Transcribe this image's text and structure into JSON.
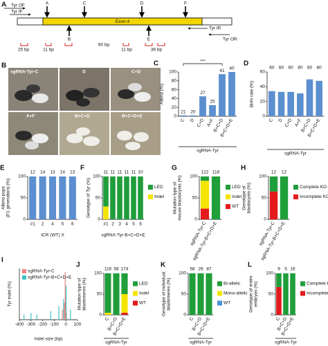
{
  "gene_diagram": {
    "panel": "A",
    "primers": [
      "Tyr OF",
      "Tyr IF",
      "Tyr IR",
      "Tyr OR"
    ],
    "exon": "Exon 4",
    "sites_top": [
      "A",
      "C",
      "D",
      "F"
    ],
    "sites_bottom": [
      "B",
      "E"
    ],
    "sizes": [
      "25 bp",
      "11 bp",
      "60 bp",
      "11 bp",
      "36 bp"
    ]
  },
  "photos": {
    "panel": "B",
    "labels": [
      "sgRNA-Tyr-C",
      "D",
      "C+D",
      "A+F",
      "B+C+D",
      "B+C+D+E"
    ]
  },
  "chart_data": [
    {
      "panel": "C",
      "type": "bar",
      "ylabel": [
        "Albino (%)"
      ],
      "xlabel": "sgRNA-Tyr",
      "categories": [
        "C",
        "D",
        "C+D",
        "A+F",
        "B+C+D",
        "B+C+D+E"
      ],
      "values": [
        2,
        2,
        45,
        25,
        95,
        100
      ],
      "n_labels": [
        "21",
        "20",
        "27",
        "25",
        "41",
        "40"
      ],
      "annotation": "***",
      "color": "#5b8fd0",
      "ylim": [
        0,
        100
      ],
      "yticks": [
        0,
        20,
        40,
        60,
        80,
        100
      ]
    },
    {
      "panel": "D",
      "type": "bar",
      "ylabel": [
        "Birth rate (%)"
      ],
      "xlabel": "sgRNA-Tyr",
      "categories": [
        "C",
        "D",
        "C+D",
        "A+F",
        "B+C+D",
        "B+C+D+E"
      ],
      "values": [
        34,
        33,
        33,
        31,
        50,
        48
      ],
      "n_labels": [
        "60",
        "60",
        "60",
        "80",
        "80",
        "80"
      ],
      "color": "#5b8fd0",
      "ylim": [
        0,
        60
      ],
      "yticks": [
        0,
        20,
        40,
        60
      ]
    },
    {
      "panel": "E",
      "type": "bar",
      "ylabel": [
        "Albino pups",
        "(F1 generation) (%)"
      ],
      "xlabel": "ICR (WT) X",
      "categories": [
        "#1",
        "2",
        "4",
        "5",
        "6"
      ],
      "values": [
        100,
        100,
        100,
        100,
        100
      ],
      "n_labels": [
        "12",
        "14",
        "13",
        "14",
        "13"
      ],
      "color": "#5b8fd0",
      "ylim": [
        0,
        100
      ],
      "yticks": [
        0,
        50,
        100
      ]
    },
    {
      "panel": "F",
      "type": "stacked",
      "ylabel": [
        "Genotype of Tyr (%)"
      ],
      "xlabel": "sgRNA-Tyr-B+C+D+E",
      "categories": [
        "#1",
        "2",
        "3",
        "4",
        "5",
        "6"
      ],
      "n_labels": [
        "11",
        "11",
        "11",
        "11",
        "11",
        "10"
      ],
      "series": [
        {
          "name": "LED",
          "color": "#1f9e3a",
          "values": [
            70,
            100,
            100,
            100,
            100,
            100
          ]
        },
        {
          "name": "Indel",
          "color": "#f5e400",
          "values": [
            30,
            0,
            0,
            0,
            0,
            0
          ]
        }
      ],
      "ylim": [
        0,
        100
      ],
      "yticks": [
        0,
        50,
        100
      ]
    },
    {
      "panel": "G",
      "type": "stacked",
      "ylabel": [
        "Mutation type of",
        "mouse blastocysts (%)"
      ],
      "categories": [
        "sgRNA-Tyr-C",
        "sgRNA-Tyr-B+C+D+E"
      ],
      "n_labels": [
        "122",
        "118"
      ],
      "series": [
        {
          "name": "LED",
          "color": "#1f9e3a",
          "values": [
            10,
            100
          ]
        },
        {
          "name": "Indel",
          "color": "#f5e400",
          "values": [
            65,
            0
          ]
        },
        {
          "name": "WT",
          "color": "#e41a1c",
          "values": [
            25,
            0
          ]
        }
      ],
      "ylim": [
        0,
        100
      ],
      "yticks": [
        0,
        50,
        100
      ]
    },
    {
      "panel": "H",
      "type": "stacked",
      "ylabel": [
        "Genotype of",
        "blastocysts (%)"
      ],
      "categories": [
        "sgRNA-Tyr-C",
        "sgRNA-Tyr-B+C+D+E"
      ],
      "n_labels": [
        "12",
        "12"
      ],
      "series": [
        {
          "name": "Complete KO",
          "color": "#1f9e3a",
          "values": [
            35,
            100
          ]
        },
        {
          "name": "Incomplete KO",
          "color": "#e41a1c",
          "values": [
            65,
            0
          ]
        }
      ],
      "ylim": [
        0,
        100
      ],
      "yticks": [
        0,
        50,
        100
      ]
    },
    {
      "panel": "I",
      "type": "spike",
      "ylabel": [
        "Tyr indel (%)"
      ],
      "xlabel": "Indel size (bp)",
      "series": [
        {
          "name": "sgRNA-Tyr-C",
          "color": "#f08080",
          "x": [
            -30,
            -12,
            -6,
            -3,
            5
          ],
          "values": [
            6,
            10,
            28,
            14,
            4
          ]
        },
        {
          "name": "sgRNA-Tyr-B+C+D+E",
          "color": "#40c0c0",
          "x": [
            -360,
            -300,
            -250,
            -130,
            -60,
            -20,
            2,
            40
          ],
          "values": [
            3,
            4,
            3,
            5,
            8,
            12,
            20,
            6
          ]
        }
      ],
      "xlim": [
        -400,
        100
      ],
      "xticks": [
        -400,
        -300,
        -200,
        -100,
        0,
        100
      ],
      "ylim": [
        0,
        30
      ]
    },
    {
      "panel": "J",
      "type": "stacked",
      "ylabel": [
        "Mutation type of",
        "blastomeres (%)"
      ],
      "xlabel": "sgRNA-Tyr",
      "categories": [
        "C",
        "B+C+D",
        "B+C+D+E"
      ],
      "n_labels": [
        "116",
        "58",
        "174"
      ],
      "series": [
        {
          "name": "LED",
          "color": "#1f9e3a",
          "values": [
            95,
            100,
            50
          ]
        },
        {
          "name": "Indel",
          "color": "#f5e400",
          "values": [
            5,
            0,
            45
          ]
        },
        {
          "name": "WT",
          "color": "#e41a1c",
          "values": [
            0,
            0,
            5
          ]
        }
      ],
      "ylim": [
        0,
        100
      ],
      "yticks": [
        0,
        50,
        100
      ]
    },
    {
      "panel": "K",
      "type": "stacked",
      "ylabel": [
        "Genotype of individual",
        "blastomeres (%)"
      ],
      "xlabel": "sgRNA-Tyr",
      "categories": [
        "C",
        "B+C+D",
        "B+C+D+E"
      ],
      "n_labels": [
        "58",
        "29",
        "87"
      ],
      "series": [
        {
          "name": "Bi-allelic",
          "color": "#1f9e3a",
          "values": [
            100,
            100,
            100
          ]
        },
        {
          "name": "Mono-allelic",
          "color": "#f5e400",
          "values": [
            0,
            0,
            0
          ]
        },
        {
          "name": "WT",
          "color": "#4a90d9",
          "values": [
            0,
            0,
            0
          ]
        }
      ],
      "ylim": [
        0,
        100
      ],
      "yticks": [
        0,
        50,
        100
      ]
    },
    {
      "panel": "L",
      "type": "stacked",
      "ylabel": [
        "Genotype of entire",
        "embryos (%)"
      ],
      "xlabel": "sgRNA-Tyr",
      "categories": [
        "C",
        "B+C+D",
        "B+C+D+E"
      ],
      "n_labels": [
        "9",
        "5",
        "16"
      ],
      "series": [
        {
          "name": "Complete KO",
          "color": "#1f9e3a",
          "values": [
            33,
            100,
            100
          ]
        },
        {
          "name": "Incomplete KO",
          "color": "#e41a1c",
          "values": [
            67,
            0,
            0
          ]
        }
      ],
      "ylim": [
        0,
        100
      ],
      "yticks": [
        0,
        50,
        100
      ]
    }
  ]
}
